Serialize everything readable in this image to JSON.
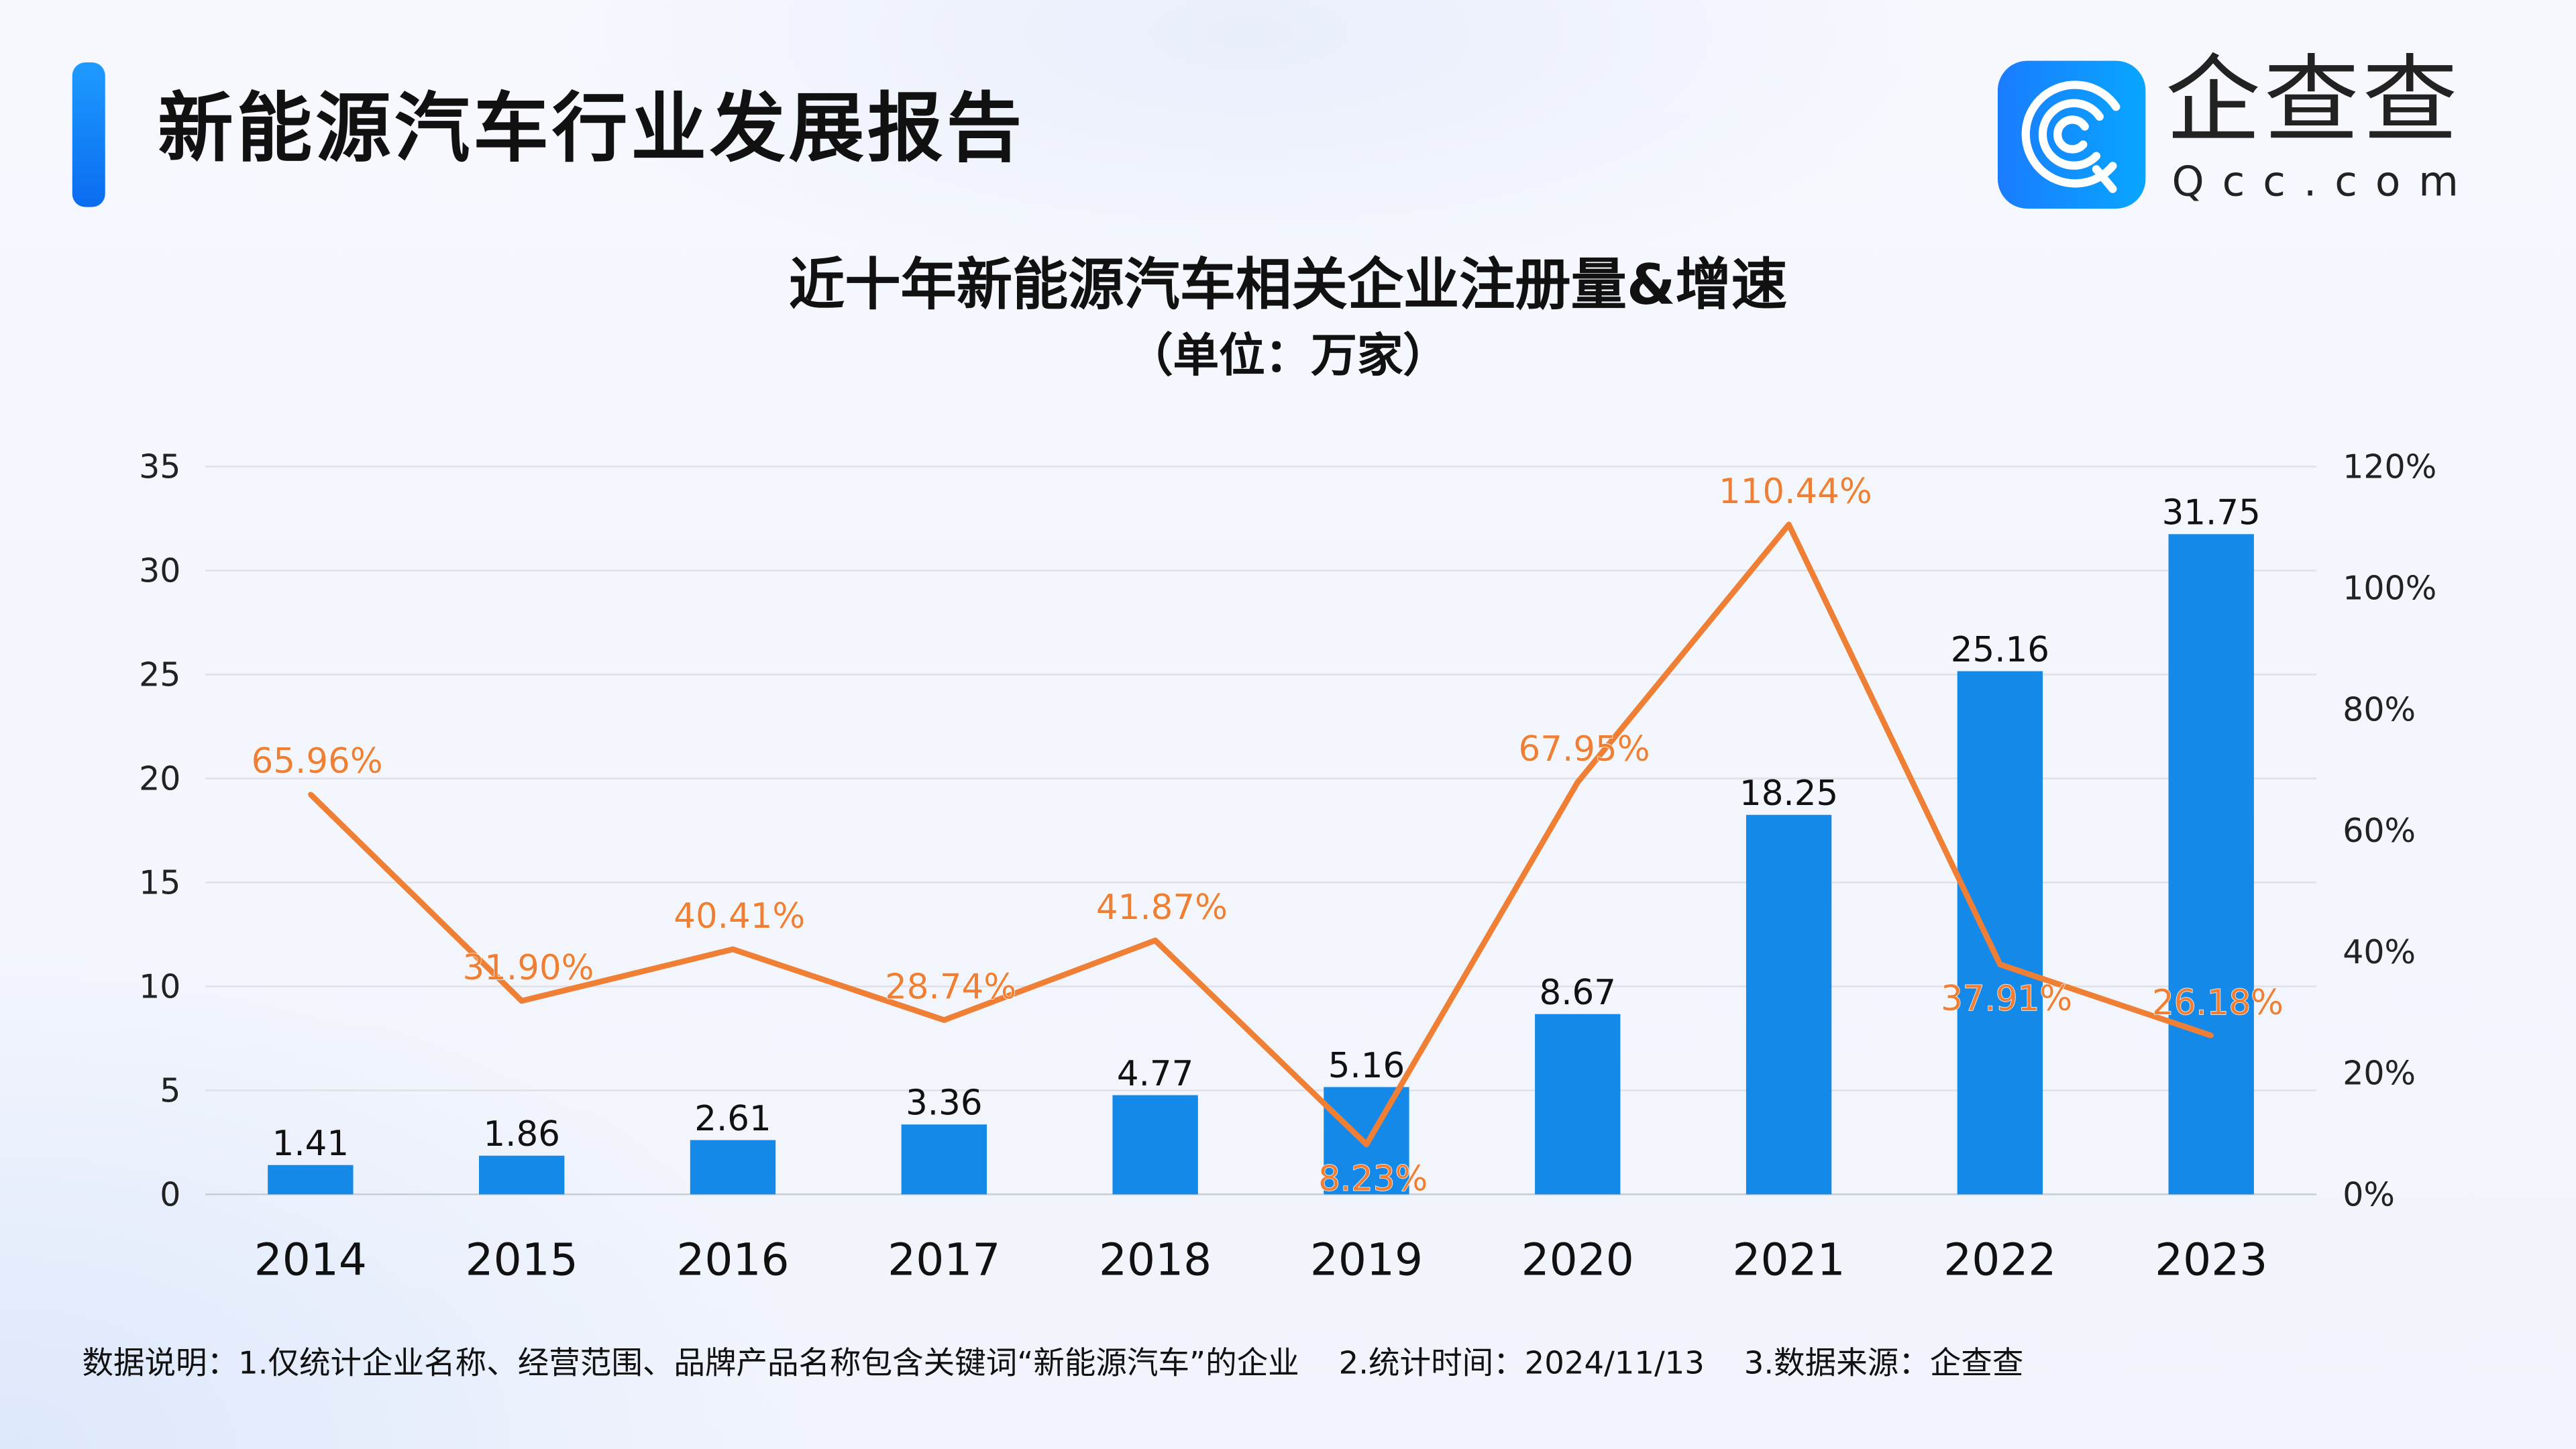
{
  "header": {
    "title": "新能源汽车行业发展报告",
    "logo": {
      "cn": "企查查",
      "en": "Qcc.com"
    }
  },
  "colors": {
    "bar": "#1489e8",
    "line": "#ef7f34",
    "accent": "#0a6cf0"
  },
  "chart_data": {
    "type": "bar+line",
    "title": "近十年新能源汽车相关企业注册量&增速",
    "subtitle": "（单位：万家）",
    "categories": [
      "2014",
      "2015",
      "2016",
      "2017",
      "2018",
      "2019",
      "2020",
      "2021",
      "2022",
      "2023"
    ],
    "series": [
      {
        "type": "bar",
        "axis": "left",
        "values": [
          1.41,
          1.86,
          2.61,
          3.36,
          4.77,
          5.16,
          8.67,
          18.25,
          25.16,
          31.75
        ],
        "labels": [
          "1.41",
          "1.86",
          "2.61",
          "3.36",
          "4.77",
          "5.16",
          "8.67",
          "18.25",
          "25.16",
          "31.75"
        ]
      },
      {
        "type": "line",
        "axis": "right",
        "values": [
          65.96,
          31.9,
          40.41,
          28.74,
          41.87,
          8.23,
          67.95,
          110.44,
          37.91,
          26.18
        ],
        "labels": [
          "65.96%",
          "31.90%",
          "40.41%",
          "28.74%",
          "41.87%",
          "8.23%",
          "67.95%",
          "110.44%",
          "37.91%",
          "26.18%"
        ]
      }
    ],
    "ylim": [
      0,
      35
    ],
    "yticks": [
      "0",
      "5",
      "10",
      "15",
      "20",
      "25",
      "30",
      "35"
    ],
    "y2lim": [
      0,
      120
    ],
    "y2ticks": [
      "0%",
      "20%",
      "40%",
      "60%",
      "80%",
      "100%",
      "120%"
    ],
    "grid": true
  },
  "footnote": {
    "items": [
      "数据说明：1.仅统计企业名称、经营范围、品牌产品名称包含关键词“新能源汽车”的企业",
      "2.统计时间：2024/11/13",
      "3.数据来源：企查查"
    ]
  }
}
